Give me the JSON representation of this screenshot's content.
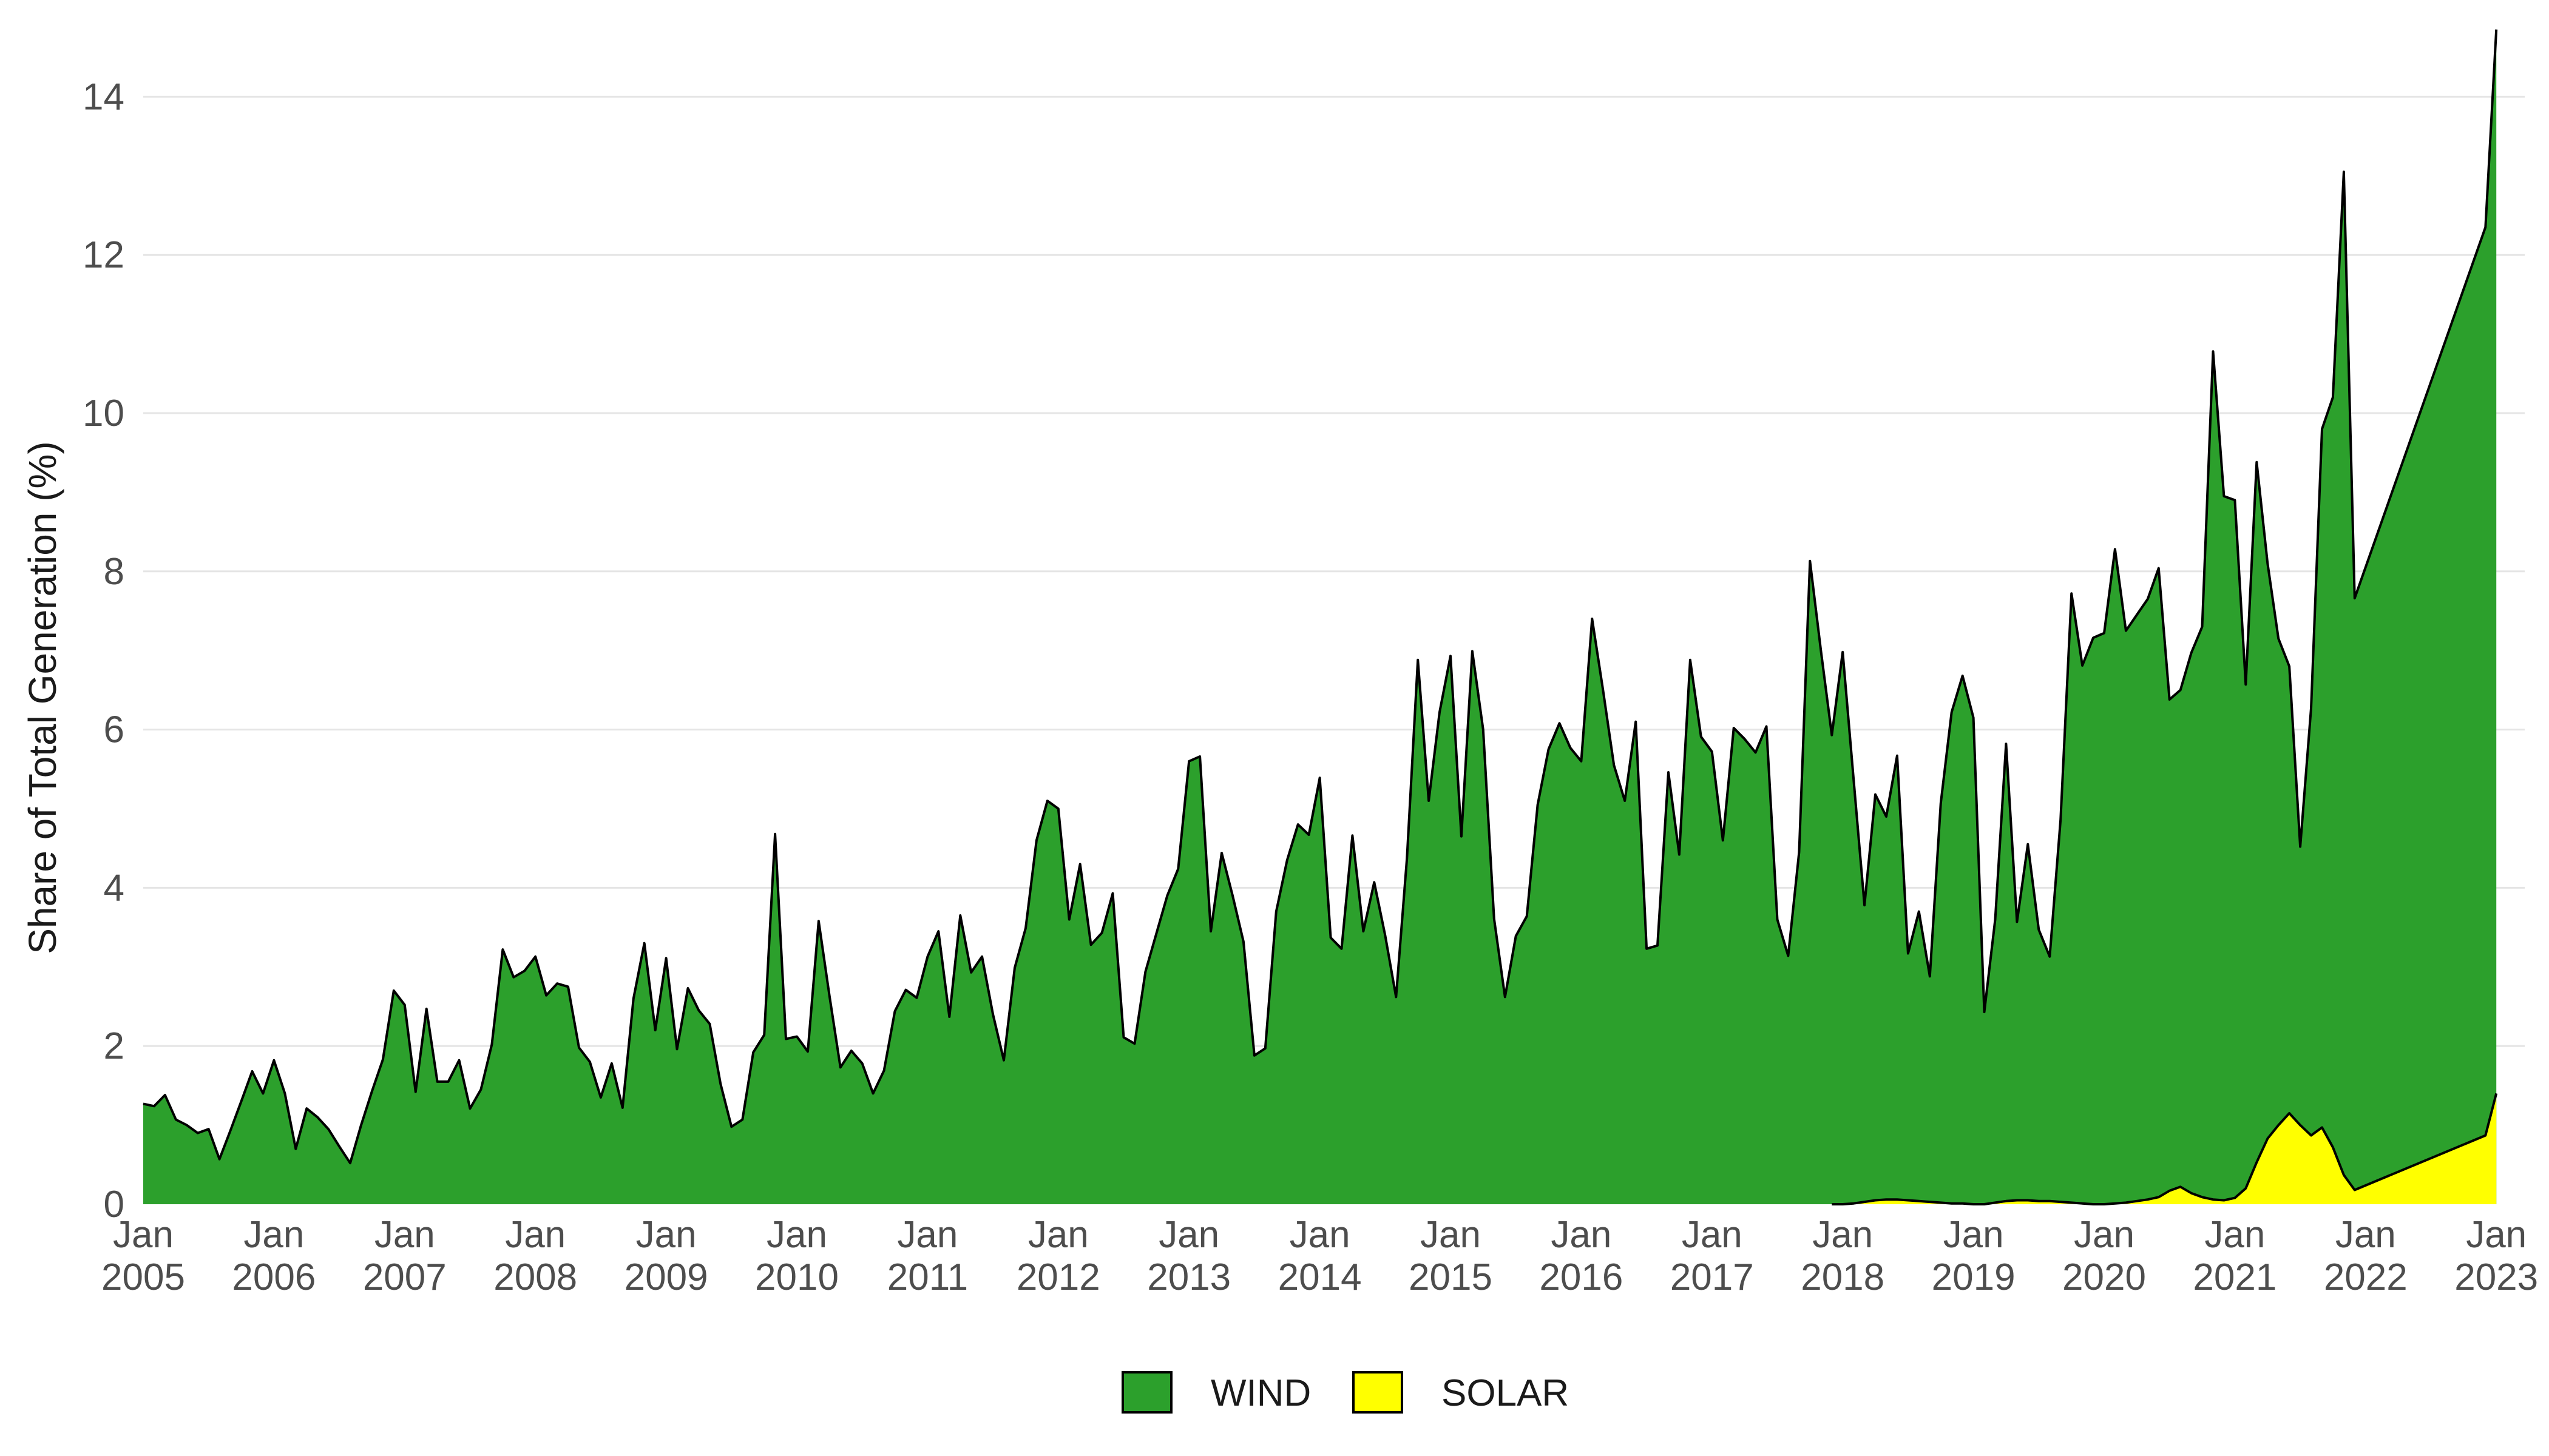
{
  "chart_data": {
    "type": "area",
    "stacked": false,
    "ylabel": "Share of Total Generation (%)",
    "xlabel": "",
    "ylim": [
      0,
      14.8
    ],
    "yticks": [
      0,
      2,
      4,
      6,
      8,
      10,
      12,
      14
    ],
    "grid": "horizontal",
    "legend_position": "bottom",
    "xticks": [
      {
        "x": "2005-01",
        "month": "Jan",
        "year": "2005"
      },
      {
        "x": "2006-01",
        "month": "Jan",
        "year": "2006"
      },
      {
        "x": "2007-01",
        "month": "Jan",
        "year": "2007"
      },
      {
        "x": "2008-01",
        "month": "Jan",
        "year": "2008"
      },
      {
        "x": "2009-01",
        "month": "Jan",
        "year": "2009"
      },
      {
        "x": "2010-01",
        "month": "Jan",
        "year": "2010"
      },
      {
        "x": "2011-01",
        "month": "Jan",
        "year": "2011"
      },
      {
        "x": "2012-01",
        "month": "Jan",
        "year": "2012"
      },
      {
        "x": "2013-01",
        "month": "Jan",
        "year": "2013"
      },
      {
        "x": "2014-01",
        "month": "Jan",
        "year": "2014"
      },
      {
        "x": "2015-01",
        "month": "Jan",
        "year": "2015"
      },
      {
        "x": "2016-01",
        "month": "Jan",
        "year": "2016"
      },
      {
        "x": "2017-01",
        "month": "Jan",
        "year": "2017"
      },
      {
        "x": "2018-01",
        "month": "Jan",
        "year": "2018"
      },
      {
        "x": "2019-01",
        "month": "Jan",
        "year": "2019"
      },
      {
        "x": "2020-01",
        "month": "Jan",
        "year": "2020"
      },
      {
        "x": "2021-01",
        "month": "Jan",
        "year": "2021"
      },
      {
        "x": "2022-01",
        "month": "Jan",
        "year": "2022"
      },
      {
        "x": "2023-01",
        "month": "Jan",
        "year": "2023"
      }
    ],
    "series": [
      {
        "name": "WIND",
        "color": "#2ca02c",
        "points": [
          [
            "2005-01",
            1.27
          ],
          [
            "2005-02",
            1.24
          ],
          [
            "2005-03",
            1.38
          ],
          [
            "2005-04",
            1.07
          ],
          [
            "2005-05",
            1.0
          ],
          [
            "2005-06",
            0.9
          ],
          [
            "2005-07",
            0.95
          ],
          [
            "2005-08",
            0.57
          ],
          [
            "2005-09",
            0.93
          ],
          [
            "2005-10",
            1.3
          ],
          [
            "2005-11",
            1.68
          ],
          [
            "2005-12",
            1.4
          ],
          [
            "2006-01",
            1.82
          ],
          [
            "2006-02",
            1.4
          ],
          [
            "2006-03",
            0.7
          ],
          [
            "2006-04",
            1.21
          ],
          [
            "2006-05",
            1.1
          ],
          [
            "2006-06",
            0.95
          ],
          [
            "2006-07",
            0.73
          ],
          [
            "2006-08",
            0.52
          ],
          [
            "2006-09",
            1.0
          ],
          [
            "2006-10",
            1.43
          ],
          [
            "2006-11",
            1.83
          ],
          [
            "2006-12",
            2.7
          ],
          [
            "2007-01",
            2.52
          ],
          [
            "2007-02",
            1.42
          ],
          [
            "2007-03",
            2.47
          ],
          [
            "2007-04",
            1.55
          ],
          [
            "2007-05",
            1.55
          ],
          [
            "2007-06",
            1.82
          ],
          [
            "2007-07",
            1.21
          ],
          [
            "2007-08",
            1.45
          ],
          [
            "2007-09",
            2.02
          ],
          [
            "2007-10",
            3.22
          ],
          [
            "2007-11",
            2.87
          ],
          [
            "2007-12",
            2.95
          ],
          [
            "2008-01",
            3.13
          ],
          [
            "2008-02",
            2.64
          ],
          [
            "2008-03",
            2.79
          ],
          [
            "2008-04",
            2.75
          ],
          [
            "2008-05",
            1.98
          ],
          [
            "2008-06",
            1.8
          ],
          [
            "2008-07",
            1.35
          ],
          [
            "2008-08",
            1.78
          ],
          [
            "2008-09",
            1.22
          ],
          [
            "2008-10",
            2.6
          ],
          [
            "2008-11",
            3.3
          ],
          [
            "2008-12",
            2.2
          ],
          [
            "2009-01",
            3.11
          ],
          [
            "2009-02",
            1.96
          ],
          [
            "2009-03",
            2.73
          ],
          [
            "2009-04",
            2.45
          ],
          [
            "2009-05",
            2.28
          ],
          [
            "2009-06",
            1.52
          ],
          [
            "2009-07",
            0.98
          ],
          [
            "2009-08",
            1.07
          ],
          [
            "2009-09",
            1.92
          ],
          [
            "2009-10",
            2.14
          ],
          [
            "2009-11",
            4.68
          ],
          [
            "2009-12",
            2.09
          ],
          [
            "2010-01",
            2.12
          ],
          [
            "2010-02",
            1.93
          ],
          [
            "2010-03",
            3.58
          ],
          [
            "2010-04",
            2.63
          ],
          [
            "2010-05",
            1.73
          ],
          [
            "2010-06",
            1.94
          ],
          [
            "2010-07",
            1.78
          ],
          [
            "2010-08",
            1.4
          ],
          [
            "2010-09",
            1.69
          ],
          [
            "2010-10",
            2.44
          ],
          [
            "2010-11",
            2.71
          ],
          [
            "2010-12",
            2.61
          ],
          [
            "2011-01",
            3.13
          ],
          [
            "2011-02",
            3.45
          ],
          [
            "2011-03",
            2.37
          ],
          [
            "2011-04",
            3.65
          ],
          [
            "2011-05",
            2.93
          ],
          [
            "2011-06",
            3.13
          ],
          [
            "2011-07",
            2.4
          ],
          [
            "2011-08",
            1.82
          ],
          [
            "2011-09",
            2.99
          ],
          [
            "2011-10",
            3.49
          ],
          [
            "2011-11",
            4.6
          ],
          [
            "2011-12",
            5.1
          ],
          [
            "2012-01",
            5.0
          ],
          [
            "2012-02",
            3.6
          ],
          [
            "2012-03",
            4.3
          ],
          [
            "2012-04",
            3.28
          ],
          [
            "2012-05",
            3.43
          ],
          [
            "2012-06",
            3.93
          ],
          [
            "2012-07",
            2.11
          ],
          [
            "2012-08",
            2.03
          ],
          [
            "2012-09",
            2.94
          ],
          [
            "2012-10",
            3.42
          ],
          [
            "2012-11",
            3.9
          ],
          [
            "2012-12",
            4.24
          ],
          [
            "2013-01",
            5.6
          ],
          [
            "2013-02",
            5.66
          ],
          [
            "2013-03",
            3.45
          ],
          [
            "2013-04",
            4.44
          ],
          [
            "2013-05",
            3.9
          ],
          [
            "2013-06",
            3.32
          ],
          [
            "2013-07",
            1.88
          ],
          [
            "2013-08",
            1.97
          ],
          [
            "2013-09",
            3.7
          ],
          [
            "2013-10",
            4.35
          ],
          [
            "2013-11",
            4.8
          ],
          [
            "2013-12",
            4.67
          ],
          [
            "2014-01",
            5.39
          ],
          [
            "2014-02",
            3.37
          ],
          [
            "2014-03",
            3.23
          ],
          [
            "2014-04",
            4.66
          ],
          [
            "2014-05",
            3.45
          ],
          [
            "2014-06",
            4.07
          ],
          [
            "2014-07",
            3.4
          ],
          [
            "2014-08",
            2.62
          ],
          [
            "2014-09",
            4.37
          ],
          [
            "2014-10",
            6.88
          ],
          [
            "2014-11",
            5.1
          ],
          [
            "2014-12",
            6.22
          ],
          [
            "2015-01",
            6.93
          ],
          [
            "2015-02",
            4.65
          ],
          [
            "2015-03",
            6.99
          ],
          [
            "2015-04",
            6.0
          ],
          [
            "2015-05",
            3.61
          ],
          [
            "2015-06",
            2.62
          ],
          [
            "2015-07",
            3.39
          ],
          [
            "2015-08",
            3.64
          ],
          [
            "2015-09",
            5.05
          ],
          [
            "2015-10",
            5.75
          ],
          [
            "2015-11",
            6.08
          ],
          [
            "2015-12",
            5.77
          ],
          [
            "2016-01",
            5.6
          ],
          [
            "2016-02",
            7.4
          ],
          [
            "2016-03",
            6.5
          ],
          [
            "2016-04",
            5.55
          ],
          [
            "2016-05",
            5.1
          ],
          [
            "2016-06",
            6.1
          ],
          [
            "2016-07",
            3.23
          ],
          [
            "2016-08",
            3.27
          ],
          [
            "2016-09",
            5.46
          ],
          [
            "2016-10",
            4.42
          ],
          [
            "2016-11",
            6.88
          ],
          [
            "2016-12",
            5.91
          ],
          [
            "2017-01",
            5.72
          ],
          [
            "2017-02",
            4.6
          ],
          [
            "2017-03",
            6.02
          ],
          [
            "2017-04",
            5.88
          ],
          [
            "2017-05",
            5.71
          ],
          [
            "2017-06",
            6.04
          ],
          [
            "2017-07",
            3.6
          ],
          [
            "2017-08",
            3.14
          ],
          [
            "2017-09",
            4.45
          ],
          [
            "2017-10",
            8.13
          ],
          [
            "2017-11",
            7.0
          ],
          [
            "2017-12",
            5.93
          ],
          [
            "2018-01",
            6.98
          ],
          [
            "2018-02",
            5.37
          ],
          [
            "2018-03",
            3.78
          ],
          [
            "2018-04",
            5.18
          ],
          [
            "2018-05",
            4.9
          ],
          [
            "2018-06",
            5.67
          ],
          [
            "2018-07",
            3.17
          ],
          [
            "2018-08",
            3.7
          ],
          [
            "2018-09",
            2.88
          ],
          [
            "2018-10",
            5.07
          ],
          [
            "2018-11",
            6.22
          ],
          [
            "2018-12",
            6.68
          ],
          [
            "2019-01",
            6.15
          ],
          [
            "2019-02",
            2.43
          ],
          [
            "2019-03",
            3.6
          ],
          [
            "2019-04",
            5.82
          ],
          [
            "2019-05",
            3.57
          ],
          [
            "2019-06",
            4.55
          ],
          [
            "2019-07",
            3.47
          ],
          [
            "2019-08",
            3.13
          ],
          [
            "2019-09",
            4.86
          ],
          [
            "2019-10",
            7.72
          ],
          [
            "2019-11",
            6.81
          ],
          [
            "2019-12",
            7.16
          ],
          [
            "2020-01",
            7.22
          ],
          [
            "2020-02",
            8.28
          ],
          [
            "2020-03",
            7.25
          ],
          [
            "2020-04",
            7.45
          ],
          [
            "2020-05",
            7.65
          ],
          [
            "2020-06",
            8.04
          ],
          [
            "2020-07",
            6.38
          ],
          [
            "2020-08",
            6.5
          ],
          [
            "2020-09",
            6.97
          ],
          [
            "2020-10",
            7.3
          ],
          [
            "2020-11",
            10.78
          ],
          [
            "2020-12",
            8.95
          ],
          [
            "2021-01",
            8.9
          ],
          [
            "2021-02",
            6.57
          ],
          [
            "2021-03",
            9.38
          ],
          [
            "2021-04",
            8.1
          ],
          [
            "2021-05",
            7.15
          ],
          [
            "2021-06",
            6.8
          ],
          [
            "2021-07",
            4.52
          ],
          [
            "2021-08",
            6.27
          ],
          [
            "2021-09",
            9.8
          ],
          [
            "2021-10",
            10.2
          ],
          [
            "2021-11",
            13.05
          ],
          [
            "2021-12",
            7.66
          ],
          [
            "2022-12",
            12.35
          ],
          [
            "2023-01",
            14.85
          ]
        ]
      },
      {
        "name": "SOLAR",
        "color": "#ffff00",
        "points": [
          [
            "2017-12",
            0.0
          ],
          [
            "2018-01",
            0.0
          ],
          [
            "2018-02",
            0.01
          ],
          [
            "2018-03",
            0.03
          ],
          [
            "2018-04",
            0.05
          ],
          [
            "2018-05",
            0.06
          ],
          [
            "2018-06",
            0.06
          ],
          [
            "2018-07",
            0.05
          ],
          [
            "2018-08",
            0.04
          ],
          [
            "2018-09",
            0.03
          ],
          [
            "2018-10",
            0.02
          ],
          [
            "2018-11",
            0.01
          ],
          [
            "2018-12",
            0.01
          ],
          [
            "2019-01",
            0.0
          ],
          [
            "2019-02",
            0.0
          ],
          [
            "2019-03",
            0.02
          ],
          [
            "2019-04",
            0.04
          ],
          [
            "2019-05",
            0.05
          ],
          [
            "2019-06",
            0.05
          ],
          [
            "2019-07",
            0.04
          ],
          [
            "2019-08",
            0.04
          ],
          [
            "2019-09",
            0.03
          ],
          [
            "2019-10",
            0.02
          ],
          [
            "2019-11",
            0.01
          ],
          [
            "2019-12",
            0.0
          ],
          [
            "2020-01",
            0.0
          ],
          [
            "2020-02",
            0.01
          ],
          [
            "2020-03",
            0.02
          ],
          [
            "2020-04",
            0.04
          ],
          [
            "2020-05",
            0.06
          ],
          [
            "2020-06",
            0.09
          ],
          [
            "2020-07",
            0.17
          ],
          [
            "2020-08",
            0.22
          ],
          [
            "2020-09",
            0.14
          ],
          [
            "2020-10",
            0.09
          ],
          [
            "2020-11",
            0.06
          ],
          [
            "2020-12",
            0.05
          ],
          [
            "2021-01",
            0.08
          ],
          [
            "2021-02",
            0.2
          ],
          [
            "2021-03",
            0.53
          ],
          [
            "2021-04",
            0.83
          ],
          [
            "2021-05",
            1.0
          ],
          [
            "2021-06",
            1.15
          ],
          [
            "2021-07",
            1.0
          ],
          [
            "2021-08",
            0.87
          ],
          [
            "2021-09",
            0.97
          ],
          [
            "2021-10",
            0.72
          ],
          [
            "2021-11",
            0.37
          ],
          [
            "2021-12",
            0.18
          ],
          [
            "2022-12",
            0.87
          ],
          [
            "2023-01",
            1.4
          ]
        ]
      }
    ]
  }
}
